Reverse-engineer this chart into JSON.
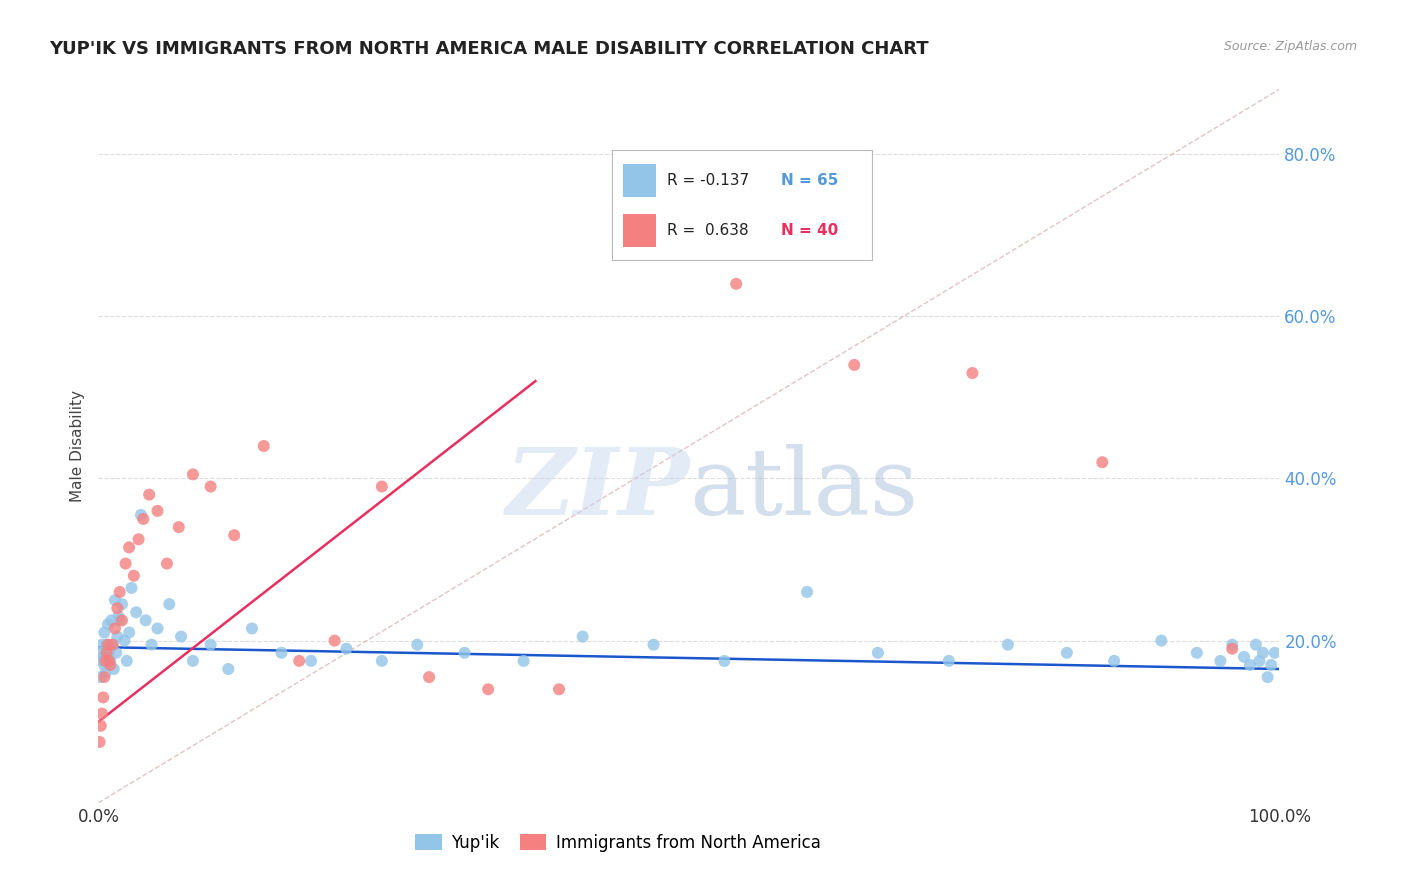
{
  "title": "YUP'IK VS IMMIGRANTS FROM NORTH AMERICA MALE DISABILITY CORRELATION CHART",
  "source": "Source: ZipAtlas.com",
  "ylabel": "Male Disability",
  "xlim": [
    0,
    1.0
  ],
  "ylim": [
    0.0,
    0.88
  ],
  "ytick_labels": [
    "20.0%",
    "40.0%",
    "60.0%",
    "80.0%"
  ],
  "ytick_positions": [
    0.2,
    0.4,
    0.6,
    0.8
  ],
  "color_blue": "#92C5E8",
  "color_pink": "#F48080",
  "color_blue_line": "#1A56CC",
  "color_pink_line": "#E83060",
  "color_diag": "#D0A0A0",
  "background": "#FFFFFF",
  "yupik_x": [
    0.001,
    0.002,
    0.003,
    0.003,
    0.004,
    0.005,
    0.005,
    0.006,
    0.007,
    0.007,
    0.008,
    0.009,
    0.01,
    0.011,
    0.012,
    0.013,
    0.014,
    0.015,
    0.016,
    0.017,
    0.018,
    0.02,
    0.022,
    0.024,
    0.026,
    0.028,
    0.032,
    0.036,
    0.04,
    0.045,
    0.05,
    0.06,
    0.07,
    0.08,
    0.095,
    0.11,
    0.13,
    0.155,
    0.18,
    0.21,
    0.24,
    0.27,
    0.31,
    0.36,
    0.41,
    0.47,
    0.53,
    0.6,
    0.66,
    0.72,
    0.77,
    0.82,
    0.86,
    0.9,
    0.93,
    0.95,
    0.96,
    0.97,
    0.975,
    0.98,
    0.983,
    0.986,
    0.99,
    0.993,
    0.996
  ],
  "yupik_y": [
    0.185,
    0.155,
    0.175,
    0.195,
    0.18,
    0.17,
    0.21,
    0.16,
    0.195,
    0.175,
    0.22,
    0.185,
    0.175,
    0.225,
    0.195,
    0.165,
    0.25,
    0.185,
    0.205,
    0.23,
    0.225,
    0.245,
    0.2,
    0.175,
    0.21,
    0.265,
    0.235,
    0.355,
    0.225,
    0.195,
    0.215,
    0.245,
    0.205,
    0.175,
    0.195,
    0.165,
    0.215,
    0.185,
    0.175,
    0.19,
    0.175,
    0.195,
    0.185,
    0.175,
    0.205,
    0.195,
    0.175,
    0.26,
    0.185,
    0.175,
    0.195,
    0.185,
    0.175,
    0.2,
    0.185,
    0.175,
    0.195,
    0.18,
    0.17,
    0.195,
    0.175,
    0.185,
    0.155,
    0.17,
    0.185
  ],
  "immigrant_x": [
    0.001,
    0.002,
    0.003,
    0.004,
    0.005,
    0.006,
    0.007,
    0.008,
    0.009,
    0.01,
    0.012,
    0.014,
    0.016,
    0.018,
    0.02,
    0.023,
    0.026,
    0.03,
    0.034,
    0.038,
    0.043,
    0.05,
    0.058,
    0.068,
    0.08,
    0.095,
    0.115,
    0.14,
    0.17,
    0.2,
    0.24,
    0.28,
    0.33,
    0.39,
    0.46,
    0.54,
    0.64,
    0.74,
    0.85,
    0.96
  ],
  "immigrant_y": [
    0.075,
    0.095,
    0.11,
    0.13,
    0.155,
    0.175,
    0.185,
    0.195,
    0.175,
    0.17,
    0.195,
    0.215,
    0.24,
    0.26,
    0.225,
    0.295,
    0.315,
    0.28,
    0.325,
    0.35,
    0.38,
    0.36,
    0.295,
    0.34,
    0.405,
    0.39,
    0.33,
    0.44,
    0.175,
    0.2,
    0.39,
    0.155,
    0.14,
    0.14,
    0.68,
    0.64,
    0.54,
    0.53,
    0.42,
    0.19
  ],
  "blue_line_x": [
    0.0,
    1.0
  ],
  "blue_line_y": [
    0.192,
    0.165
  ],
  "pink_line_x": [
    0.0,
    0.37
  ],
  "pink_line_y": [
    0.1,
    0.52
  ],
  "diag_line_x": [
    0.0,
    1.0
  ],
  "diag_line_y": [
    0.0,
    0.88
  ]
}
